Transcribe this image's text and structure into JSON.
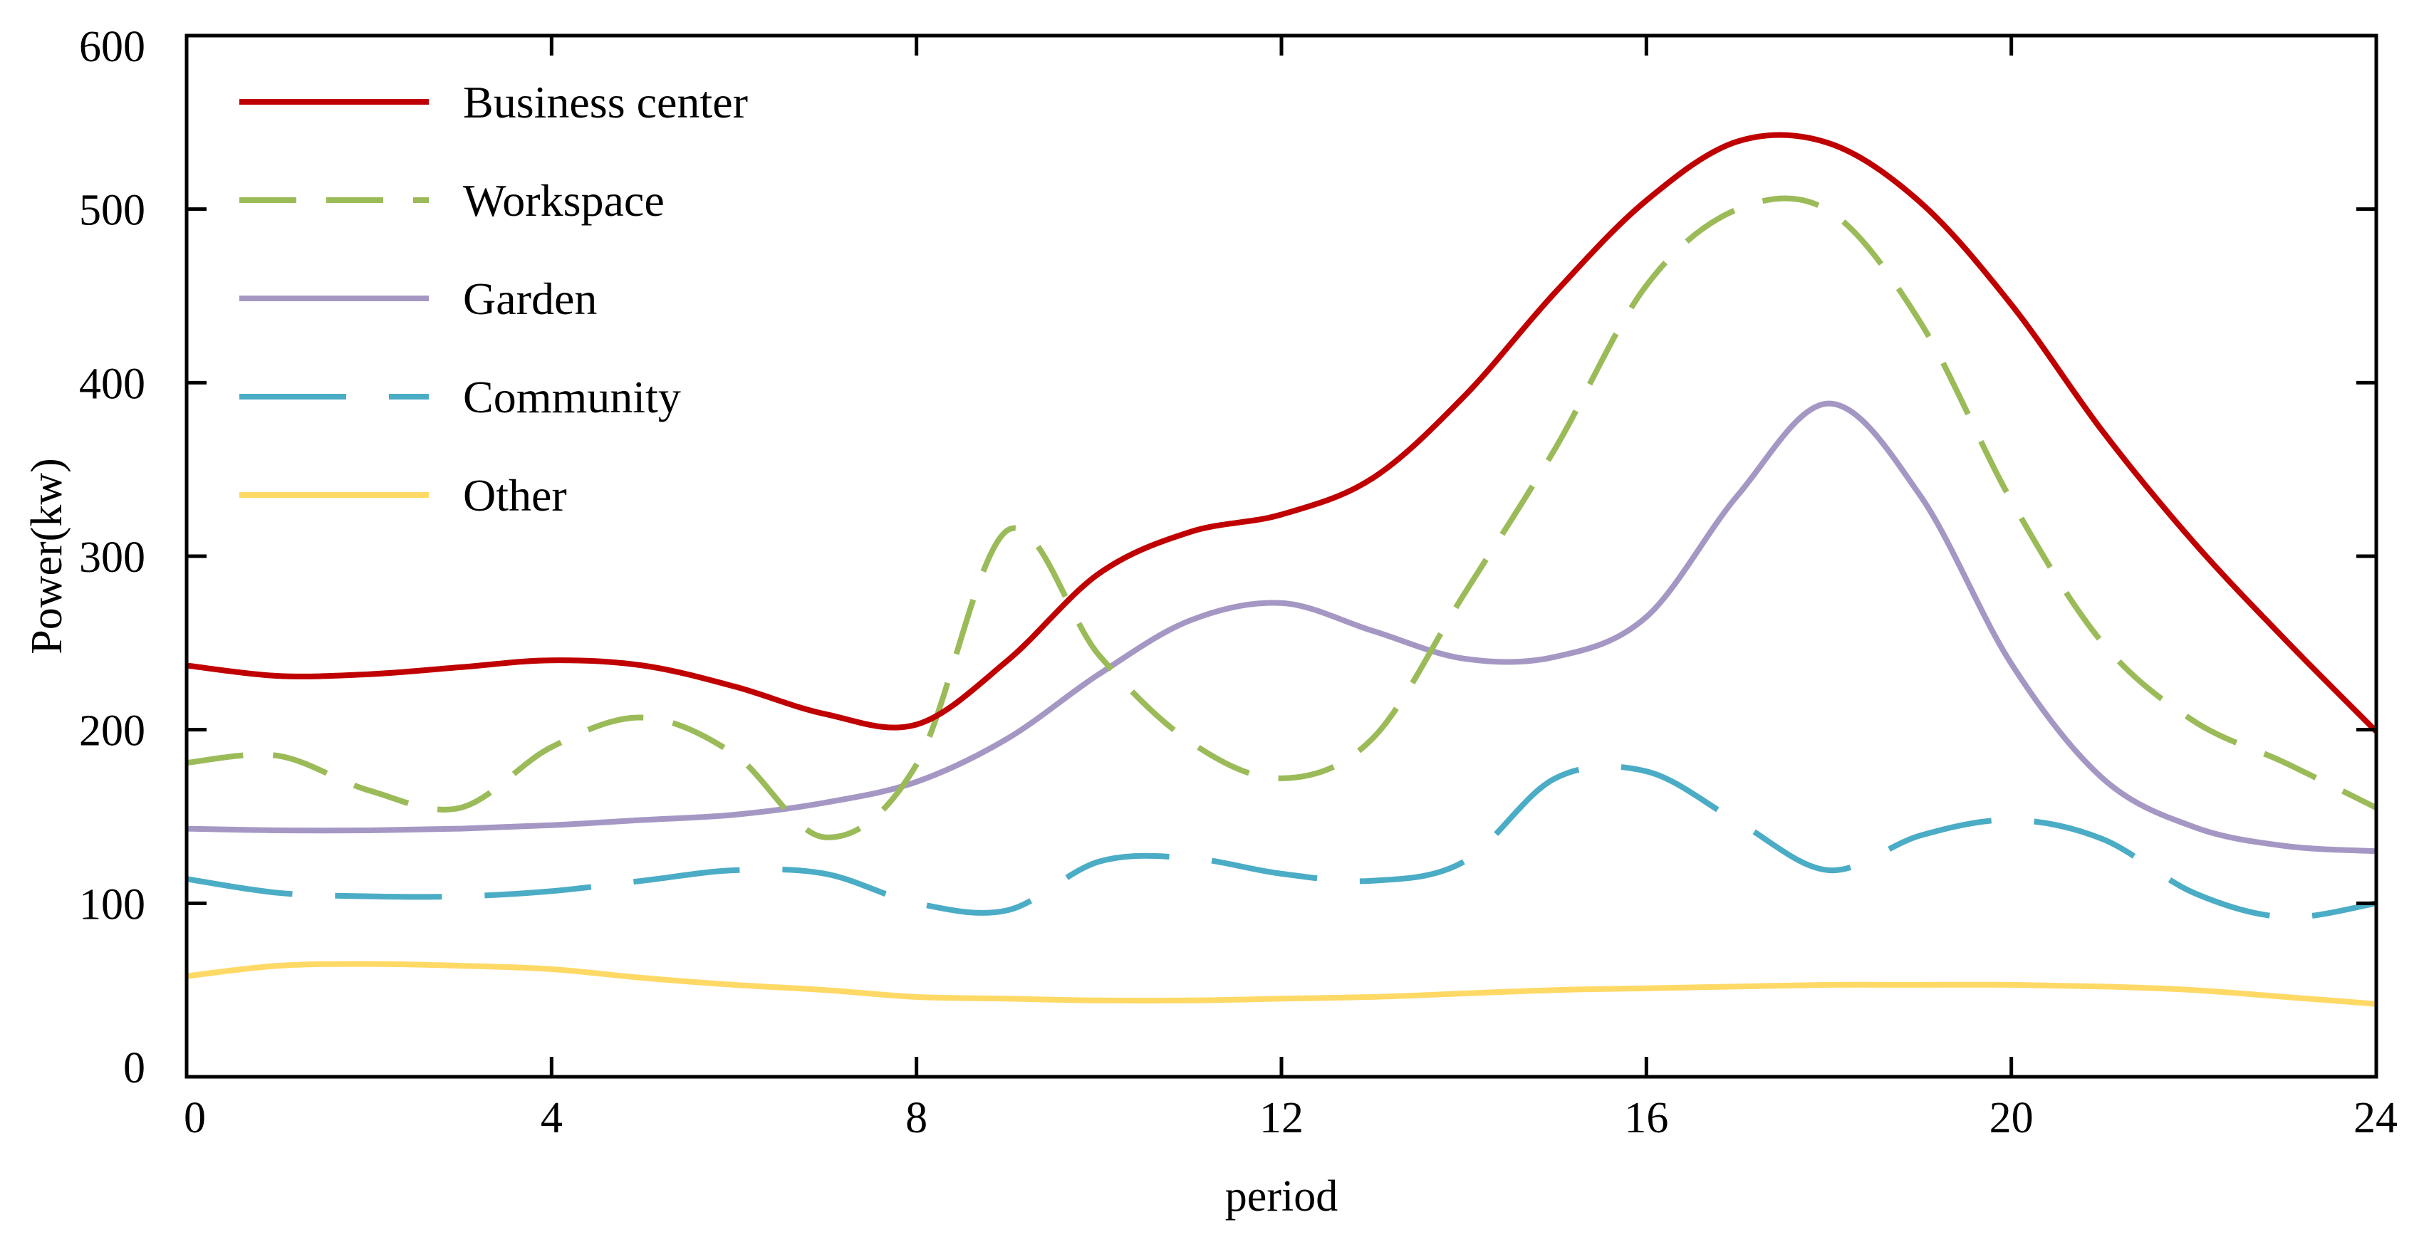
{
  "chart_data": {
    "type": "line",
    "title": "",
    "xlabel": "period",
    "ylabel": "Power(kw)",
    "xlim": [
      0,
      24
    ],
    "ylim": [
      0,
      600
    ],
    "xticks": [
      0,
      4,
      8,
      12,
      16,
      20,
      24
    ],
    "yticks": [
      0,
      100,
      200,
      300,
      400,
      500,
      600
    ],
    "xtick_labels": [
      "0",
      "4",
      "8",
      "12",
      "16",
      "20",
      "24"
    ],
    "ytick_labels": [
      "0",
      "100",
      "200",
      "300",
      "400",
      "500",
      "600"
    ],
    "grid": false,
    "legend_position": "top-left",
    "x": [
      0,
      1,
      2,
      3,
      4,
      5,
      6,
      7,
      8,
      9,
      10,
      11,
      12,
      13,
      14,
      15,
      16,
      17,
      18,
      19,
      20,
      21,
      22,
      23,
      24
    ],
    "series": [
      {
        "name": "Business center",
        "color": "#c00000",
        "dash": "solid",
        "values": [
          237,
          231,
          232,
          236,
          240,
          237,
          225,
          209,
          203,
          240,
          290,
          314,
          324,
          345,
          392,
          452,
          505,
          539,
          538,
          504,
          445,
          372,
          308,
          252,
          199
        ]
      },
      {
        "name": "Workspace",
        "color": "#9bbb59",
        "dash": "long-dash",
        "values": [
          181,
          185,
          165,
          155,
          190,
          207,
          186,
          138,
          180,
          315,
          243,
          193,
          172,
          195,
          278,
          362,
          456,
          500,
          499,
          435,
          332,
          250,
          205,
          181,
          155
        ]
      },
      {
        "name": "Garden",
        "color": "#a597c4",
        "dash": "solid",
        "values": [
          143,
          142,
          142,
          143,
          145,
          148,
          151,
          158,
          170,
          195,
          232,
          263,
          273,
          257,
          241,
          242,
          265,
          335,
          388,
          335,
          238,
          172,
          144,
          133,
          130
        ]
      },
      {
        "name": "Community",
        "color": "#4bacc6",
        "dash": "dash",
        "values": [
          114,
          106,
          104,
          104,
          107,
          113,
          119,
          117,
          100,
          96,
          124,
          126,
          117,
          113,
          124,
          172,
          176,
          147,
          119,
          139,
          148,
          137,
          106,
          92,
          100
        ]
      },
      {
        "name": "Other",
        "color": "#ffd966",
        "dash": "solid",
        "values": [
          58,
          64,
          65,
          64,
          62,
          57,
          53,
          50,
          46,
          45,
          44,
          44,
          45,
          46,
          48,
          50,
          51,
          52,
          53,
          53,
          53,
          52,
          50,
          46,
          42
        ]
      }
    ]
  }
}
